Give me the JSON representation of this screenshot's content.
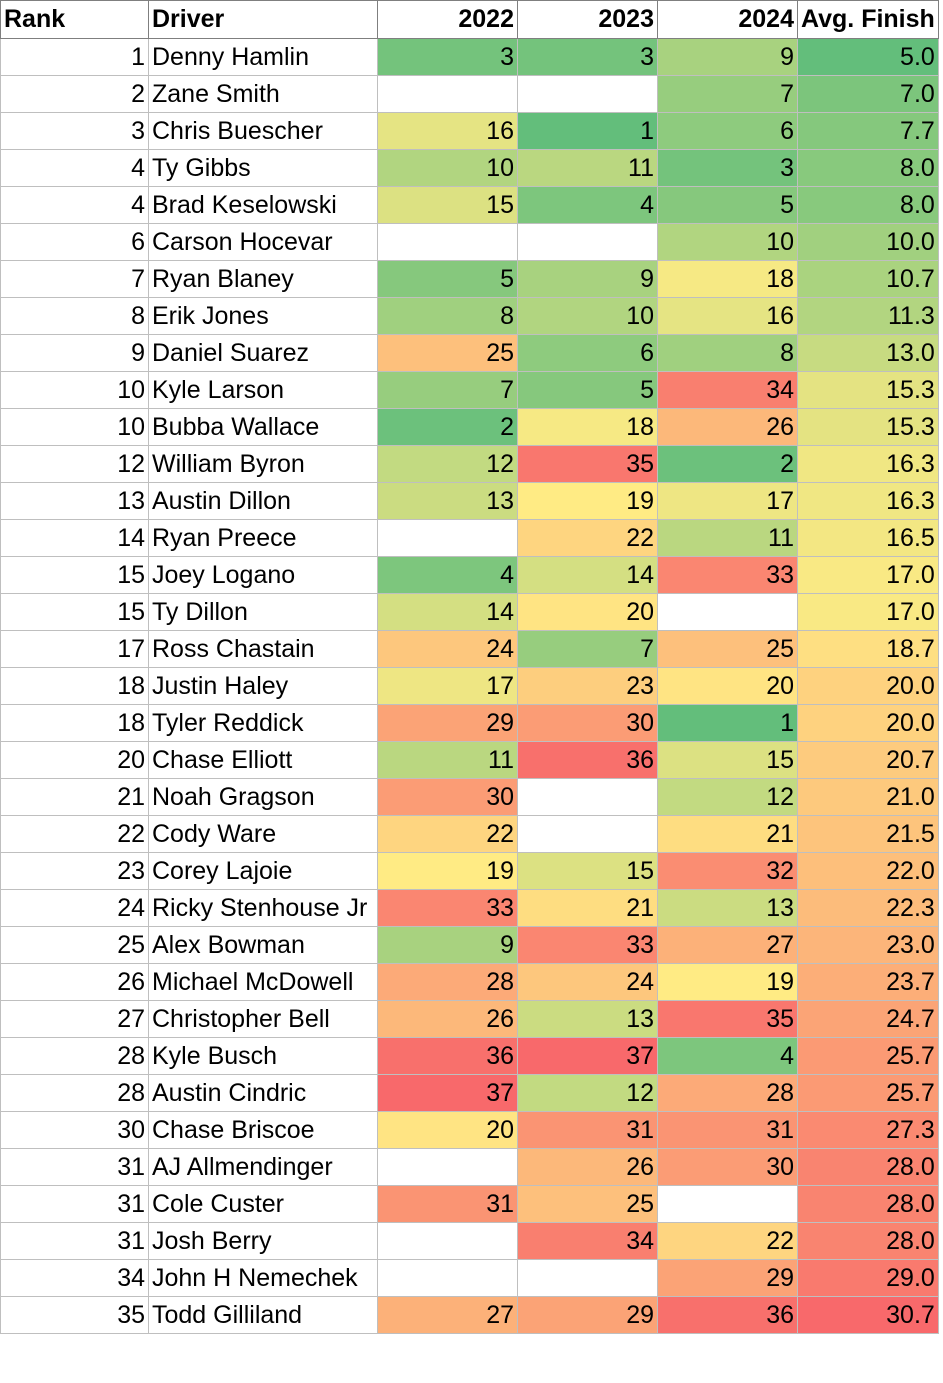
{
  "headers": {
    "rank": "Rank",
    "driver": "Driver",
    "y2022": "2022",
    "y2023": "2023",
    "y2024": "2024",
    "avg": "Avg. Finish"
  },
  "colors": {
    "best_green": "#63be7b",
    "mid_yellow": "#ffeb84",
    "worst_red": "#f8696b",
    "blank": "#ffffff",
    "grid": "#bfbfbf"
  },
  "rows": [
    {
      "rank": "1",
      "driver": "Denny Hamlin",
      "y2022": "3",
      "y2023": "3",
      "y2024": "9",
      "avg": "5.0"
    },
    {
      "rank": "2",
      "driver": "Zane Smith",
      "y2022": "",
      "y2023": "",
      "y2024": "7",
      "avg": "7.0"
    },
    {
      "rank": "3",
      "driver": "Chris Buescher",
      "y2022": "16",
      "y2023": "1",
      "y2024": "6",
      "avg": "7.7"
    },
    {
      "rank": "4",
      "driver": "Ty Gibbs",
      "y2022": "10",
      "y2023": "11",
      "y2024": "3",
      "avg": "8.0"
    },
    {
      "rank": "4",
      "driver": "Brad Keselowski",
      "y2022": "15",
      "y2023": "4",
      "y2024": "5",
      "avg": "8.0"
    },
    {
      "rank": "6",
      "driver": "Carson Hocevar",
      "y2022": "",
      "y2023": "",
      "y2024": "10",
      "avg": "10.0"
    },
    {
      "rank": "7",
      "driver": "Ryan Blaney",
      "y2022": "5",
      "y2023": "9",
      "y2024": "18",
      "avg": "10.7"
    },
    {
      "rank": "8",
      "driver": "Erik Jones",
      "y2022": "8",
      "y2023": "10",
      "y2024": "16",
      "avg": "11.3"
    },
    {
      "rank": "9",
      "driver": "Daniel Suarez",
      "y2022": "25",
      "y2023": "6",
      "y2024": "8",
      "avg": "13.0"
    },
    {
      "rank": "10",
      "driver": "Kyle Larson",
      "y2022": "7",
      "y2023": "5",
      "y2024": "34",
      "avg": "15.3"
    },
    {
      "rank": "10",
      "driver": "Bubba Wallace",
      "y2022": "2",
      "y2023": "18",
      "y2024": "26",
      "avg": "15.3"
    },
    {
      "rank": "12",
      "driver": "William Byron",
      "y2022": "12",
      "y2023": "35",
      "y2024": "2",
      "avg": "16.3"
    },
    {
      "rank": "13",
      "driver": "Austin Dillon",
      "y2022": "13",
      "y2023": "19",
      "y2024": "17",
      "avg": "16.3"
    },
    {
      "rank": "14",
      "driver": "Ryan Preece",
      "y2022": "",
      "y2023": "22",
      "y2024": "11",
      "avg": "16.5"
    },
    {
      "rank": "15",
      "driver": "Joey Logano",
      "y2022": "4",
      "y2023": "14",
      "y2024": "33",
      "avg": "17.0"
    },
    {
      "rank": "15",
      "driver": "Ty Dillon",
      "y2022": "14",
      "y2023": "20",
      "y2024": "",
      "avg": "17.0"
    },
    {
      "rank": "17",
      "driver": "Ross Chastain",
      "y2022": "24",
      "y2023": "7",
      "y2024": "25",
      "avg": "18.7"
    },
    {
      "rank": "18",
      "driver": "Justin Haley",
      "y2022": "17",
      "y2023": "23",
      "y2024": "20",
      "avg": "20.0"
    },
    {
      "rank": "18",
      "driver": "Tyler Reddick",
      "y2022": "29",
      "y2023": "30",
      "y2024": "1",
      "avg": "20.0"
    },
    {
      "rank": "20",
      "driver": "Chase Elliott",
      "y2022": "11",
      "y2023": "36",
      "y2024": "15",
      "avg": "20.7"
    },
    {
      "rank": "21",
      "driver": "Noah Gragson",
      "y2022": "30",
      "y2023": "",
      "y2024": "12",
      "avg": "21.0"
    },
    {
      "rank": "22",
      "driver": "Cody Ware",
      "y2022": "22",
      "y2023": "",
      "y2024": "21",
      "avg": "21.5"
    },
    {
      "rank": "23",
      "driver": "Corey Lajoie",
      "y2022": "19",
      "y2023": "15",
      "y2024": "32",
      "avg": "22.0"
    },
    {
      "rank": "24",
      "driver": "Ricky Stenhouse Jr",
      "y2022": "33",
      "y2023": "21",
      "y2024": "13",
      "avg": "22.3"
    },
    {
      "rank": "25",
      "driver": "Alex Bowman",
      "y2022": "9",
      "y2023": "33",
      "y2024": "27",
      "avg": "23.0"
    },
    {
      "rank": "26",
      "driver": "Michael McDowell",
      "y2022": "28",
      "y2023": "24",
      "y2024": "19",
      "avg": "23.7"
    },
    {
      "rank": "27",
      "driver": "Christopher Bell",
      "y2022": "26",
      "y2023": "13",
      "y2024": "35",
      "avg": "24.7"
    },
    {
      "rank": "28",
      "driver": "Kyle Busch",
      "y2022": "36",
      "y2023": "37",
      "y2024": "4",
      "avg": "25.7"
    },
    {
      "rank": "28",
      "driver": "Austin Cindric",
      "y2022": "37",
      "y2023": "12",
      "y2024": "28",
      "avg": "25.7"
    },
    {
      "rank": "30",
      "driver": "Chase Briscoe",
      "y2022": "20",
      "y2023": "31",
      "y2024": "31",
      "avg": "27.3"
    },
    {
      "rank": "31",
      "driver": "AJ Allmendinger",
      "y2022": "",
      "y2023": "26",
      "y2024": "30",
      "avg": "28.0"
    },
    {
      "rank": "31",
      "driver": "Cole Custer",
      "y2022": "31",
      "y2023": "25",
      "y2024": "",
      "avg": "28.0"
    },
    {
      "rank": "31",
      "driver": "Josh Berry",
      "y2022": "",
      "y2023": "34",
      "y2024": "22",
      "avg": "28.0"
    },
    {
      "rank": "34",
      "driver": "John H Nemechek",
      "y2022": "",
      "y2023": "",
      "y2024": "29",
      "avg": "29.0"
    },
    {
      "rank": "35",
      "driver": "Todd Gilliland",
      "y2022": "27",
      "y2023": "29",
      "y2024": "36",
      "avg": "30.7"
    }
  ]
}
